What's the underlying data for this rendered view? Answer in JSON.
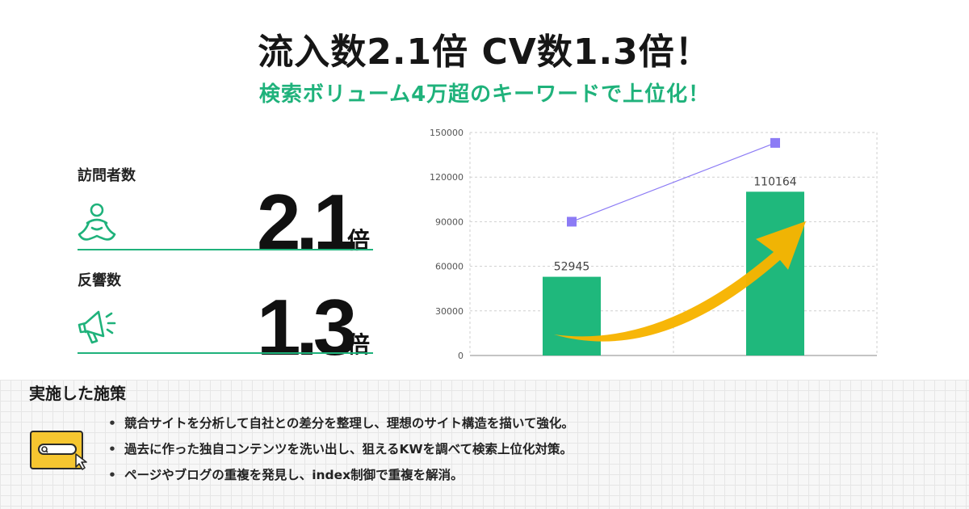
{
  "header": {
    "title": "流入数2.1倍 CV数1.3倍！",
    "subtitle": "検索ボリューム4万超のキーワードで上位化！"
  },
  "metrics": [
    {
      "label": "訪問者数",
      "value": "2.1",
      "unit": "倍",
      "icon": "person-icon"
    },
    {
      "label": "反響数",
      "value": "1.3",
      "unit": "倍",
      "icon": "megaphone-icon"
    }
  ],
  "chart_data": {
    "type": "bar",
    "categories": [
      "",
      ""
    ],
    "series": [
      {
        "values": [
          52945,
          110164
        ],
        "labels": [
          "52945",
          "110164"
        ],
        "color": "#1fb87c"
      },
      {
        "type": "line",
        "values": [
          90000,
          143000
        ],
        "color": "#8c7bf5"
      }
    ],
    "ylim": [
      0,
      150000
    ],
    "yticks": [
      0,
      30000,
      60000,
      90000,
      120000,
      150000
    ],
    "grid": true,
    "annotation": "arrow-up-right",
    "accent_colors": {
      "arrow": "#f7b400"
    }
  },
  "measures": {
    "section_title": "実施した施策",
    "items": [
      "競合サイトを分析して自社との差分を整理し、理想のサイト構造を描いて強化。",
      "過去に作った独自コンテンツを洗い出し、狙えるKWを調べて検索上位化対策。",
      "ページやブログの重複を発見し、index制御で重複を解消。"
    ],
    "icon": "laptop-search-icon"
  }
}
